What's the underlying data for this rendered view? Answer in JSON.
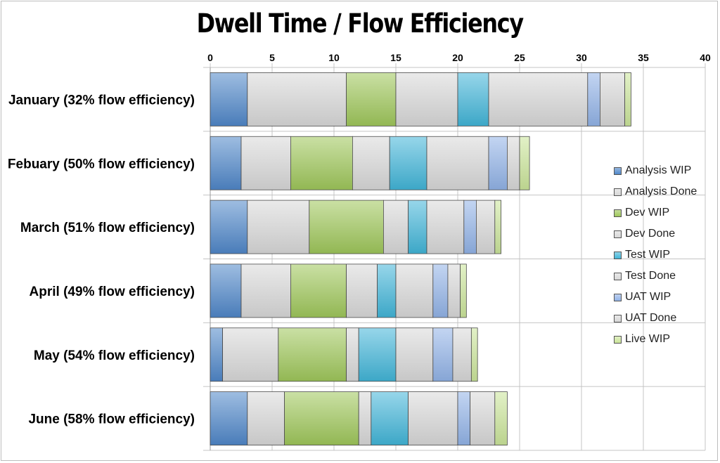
{
  "chart_data": {
    "type": "bar",
    "orientation": "horizontal",
    "stacked": true,
    "title": "Dwell Time / Flow Efficiency",
    "xlim": [
      0,
      40
    ],
    "xticks": [
      0,
      5,
      10,
      15,
      20,
      25,
      30,
      35,
      40
    ],
    "grid": true,
    "legend_position": "right",
    "categories": [
      "January (32% flow efficiency)",
      "Febuary (50% flow efficiency)",
      "March (51% flow efficiency)",
      "April (49% flow efficiency)",
      "May (54% flow efficiency)",
      "June (58% flow efficiency)"
    ],
    "series": [
      {
        "name": "Analysis WIP",
        "color": "#4f87c9",
        "values": [
          3,
          2.5,
          3,
          2.5,
          1,
          3
        ]
      },
      {
        "name": "Analysis Done",
        "color": "#d8d8d8",
        "values": [
          8,
          4,
          5,
          4,
          4.5,
          3
        ]
      },
      {
        "name": "Dev WIP",
        "color": "#9fc75a",
        "values": [
          4,
          5,
          6,
          4.5,
          5.5,
          6
        ]
      },
      {
        "name": "Dev Done",
        "color": "#d8d8d8",
        "values": [
          5,
          3,
          2,
          2.5,
          1,
          1
        ]
      },
      {
        "name": "Test WIP",
        "color": "#41b5d8",
        "values": [
          2.5,
          3,
          1.5,
          1.5,
          3,
          3
        ]
      },
      {
        "name": "Test Done",
        "color": "#d8d8d8",
        "values": [
          8,
          5,
          3,
          3,
          3,
          4
        ]
      },
      {
        "name": "UAT WIP",
        "color": "#92b3e8",
        "values": [
          1,
          1.5,
          1,
          1.2,
          1.6,
          1
        ]
      },
      {
        "name": "UAT Done",
        "color": "#d8d8d8",
        "values": [
          2,
          1,
          1.5,
          1,
          1.5,
          2
        ]
      },
      {
        "name": "Live WIP",
        "color": "#cbe59a",
        "values": [
          0.5,
          0.8,
          0.5,
          0.5,
          0.5,
          1
        ]
      }
    ]
  }
}
